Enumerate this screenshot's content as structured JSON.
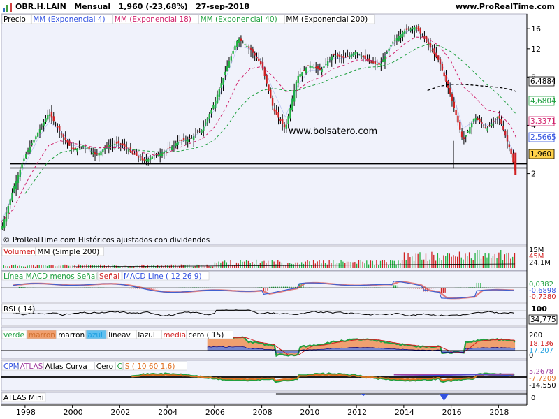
{
  "header": {
    "title": "OBR.H.LAIN   Mensual   1,960 (-23,68%)   27-sep-2018",
    "site": "www.ProRealTime.com"
  },
  "main_panel": {
    "legend": [
      "Precio",
      "MM (Exponencial 4)",
      "MM (Exponencial 18)",
      "MM (Exponencial 40)",
      "MM (Exponencial 200)"
    ],
    "legend_colors": [
      "#000000",
      "#3050e0",
      "#d0206a",
      "#20a040",
      "#000000"
    ],
    "watermark": "www.bolsatero.com",
    "footer_note": "© ProRealTime.com  Históricos ajustados con dividendos",
    "y_ticks": [
      "16",
      "12",
      "8",
      "4",
      "2"
    ],
    "value_labels": [
      {
        "text": "6,4884",
        "color": "#000000",
        "bg": "#ffffff"
      },
      {
        "text": "4,6804",
        "color": "#20a040",
        "bg": "#ffffff"
      },
      {
        "text": "3,3371",
        "color": "#d0206a",
        "bg": "#ffffff"
      },
      {
        "text": "2,5665",
        "color": "#3050e0",
        "bg": "#ffffff"
      },
      {
        "text": "1,960",
        "color": "#000000",
        "bg": "#ffd24a"
      }
    ]
  },
  "volume_panel": {
    "legend": [
      "Volumen",
      "MM (Simple 200)"
    ],
    "labels": [
      "15M",
      "45M",
      "24,1M"
    ]
  },
  "macd_panel": {
    "legend": [
      "Línea MACD menos Señal",
      "Señal",
      "MACD Line ( 12 26 9)"
    ],
    "labels": [
      "0,0382",
      "-0,6898",
      "-0,7280"
    ]
  },
  "rsi_panel": {
    "legend": [
      "RSI ( 14)"
    ],
    "labels": [
      "100",
      "34,775"
    ]
  },
  "colors_panel": {
    "legend": [
      "verde",
      "marron",
      "marron",
      "azul",
      "lineav",
      "lazul",
      "media",
      "cero ( 15)"
    ],
    "legend_colors": [
      "#20a040",
      "#d07030",
      "#000000",
      "#20a0e0",
      "#000000",
      "#000000",
      "#d02020",
      "#000000"
    ],
    "labels": [
      "200",
      "18,136",
      "17,207",
      "0"
    ]
  },
  "cpm_panel": {
    "legend": [
      "CPM",
      "ATLAS",
      "Atlas Curva",
      "Cero",
      "C",
      "S ( 10 60 1.6)"
    ],
    "legend_colors": [
      "#3050e0",
      "#a040a0",
      "#000000",
      "#000000",
      "#20a040",
      "#e07020"
    ],
    "labels": [
      "5,2678",
      "-7,7209",
      "-14,550"
    ]
  },
  "atlas_panel": {
    "legend": [
      "ATLAS Mini"
    ],
    "labels": [
      "0"
    ]
  },
  "x_axis": {
    "ticks": [
      "1998",
      "2000",
      "2002",
      "2004",
      "2006",
      "2008",
      "2010",
      "2012",
      "2014",
      "2016",
      "2018"
    ]
  },
  "chart_data": {
    "type": "line",
    "scale": "log",
    "x": [
      1997.0,
      1997.5,
      1998.0,
      1998.5,
      1999.0,
      1999.5,
      2000.0,
      2000.5,
      2001.0,
      2001.5,
      2002.0,
      2002.5,
      2003.0,
      2003.5,
      2004.0,
      2004.5,
      2005.0,
      2005.5,
      2006.0,
      2006.5,
      2007.0,
      2007.5,
      2008.0,
      2008.5,
      2009.0,
      2009.5,
      2010.0,
      2010.5,
      2011.0,
      2011.5,
      2012.0,
      2012.5,
      2013.0,
      2013.5,
      2014.0,
      2014.5,
      2015.0,
      2015.5,
      2016.0,
      2016.5,
      2017.0,
      2017.5,
      2018.0,
      2018.5,
      2018.75
    ],
    "series": [
      {
        "values": [
          0.9,
          1.6,
          2.6,
          3.5,
          4.8,
          3.6,
          2.8,
          3.0,
          2.6,
          3.0,
          3.1,
          2.7,
          2.4,
          2.6,
          2.8,
          3.2,
          3.3,
          3.8,
          5.5,
          9.0,
          14.0,
          12.0,
          9.5,
          5.0,
          3.8,
          8.0,
          9.5,
          8.8,
          11.0,
          10.5,
          11.5,
          10.0,
          9.5,
          13.0,
          15.5,
          16.5,
          13.0,
          10.0,
          6.0,
          3.2,
          4.5,
          3.8,
          4.6,
          2.8,
          1.96
        ]
      },
      {
        "values": [
          1.0,
          1.5,
          2.3,
          3.2,
          4.2,
          3.7,
          3.0,
          2.9,
          2.7,
          2.9,
          3.0,
          2.8,
          2.5,
          2.6,
          2.8,
          3.1,
          3.3,
          3.7,
          5.0,
          8.0,
          12.5,
          12.0,
          10.0,
          6.5,
          4.5,
          7.0,
          8.8,
          8.8,
          10.5,
          10.5,
          11.2,
          10.2,
          9.8,
          12.5,
          15.0,
          16.0,
          13.5,
          10.5,
          7.0,
          3.8,
          4.3,
          4.0,
          4.4,
          3.0,
          2.57
        ]
      },
      {
        "values": [
          1.0,
          1.2,
          1.7,
          2.3,
          3.0,
          3.2,
          3.1,
          3.0,
          2.9,
          2.9,
          2.9,
          2.8,
          2.7,
          2.6,
          2.7,
          2.9,
          3.1,
          3.3,
          3.9,
          5.2,
          7.5,
          9.0,
          9.3,
          8.0,
          6.5,
          6.6,
          7.5,
          8.0,
          9.0,
          9.5,
          10.2,
          10.2,
          10.0,
          11.0,
          12.8,
          14.2,
          14.0,
          12.5,
          10.0,
          7.0,
          6.0,
          5.0,
          4.8,
          4.0,
          3.34
        ]
      },
      {
        "values": [
          null,
          null,
          1.5,
          1.9,
          2.4,
          2.7,
          2.8,
          2.85,
          2.85,
          2.85,
          2.85,
          2.82,
          2.78,
          2.74,
          2.72,
          2.76,
          2.85,
          2.95,
          3.25,
          3.9,
          5.0,
          6.0,
          6.6,
          6.8,
          6.6,
          6.6,
          7.0,
          7.3,
          7.9,
          8.3,
          8.9,
          9.2,
          9.3,
          9.8,
          10.8,
          12.0,
          12.8,
          12.5,
          11.5,
          10.0,
          8.5,
          7.2,
          6.2,
          5.2,
          4.68
        ]
      },
      {
        "values": [
          null,
          null,
          null,
          null,
          null,
          null,
          null,
          null,
          null,
          null,
          null,
          null,
          null,
          null,
          null,
          null,
          null,
          null,
          null,
          null,
          null,
          null,
          null,
          null,
          null,
          null,
          null,
          null,
          null,
          null,
          null,
          null,
          null,
          null,
          null,
          null,
          6.6,
          7.0,
          7.2,
          7.2,
          7.1,
          7.0,
          6.9,
          6.7,
          6.49
        ]
      }
    ],
    "ylim": [
      0.8,
      19
    ],
    "xlim": [
      1997.0,
      2019.2
    ],
    "grid": false,
    "legend_position": "top-left"
  }
}
